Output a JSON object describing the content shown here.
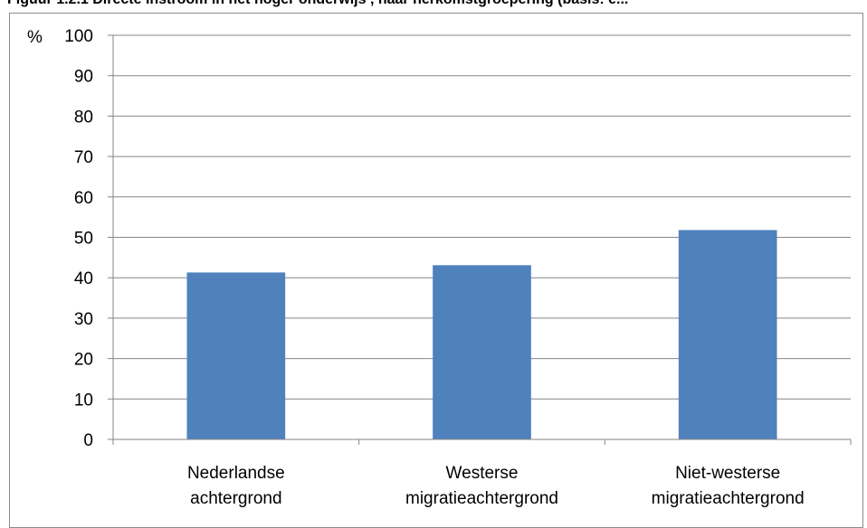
{
  "figure": {
    "title": "Figuur 1.2.1 Directe instroom in het hoger onderwijs , naar herkomstgroepering (basis: e..."
  },
  "colors": {
    "bar": "#4f81bd",
    "gridline": "#868686",
    "axis": "#868686"
  },
  "chart_data": {
    "type": "bar",
    "ylabel": "%",
    "ylim": [
      0,
      100
    ],
    "yticks": [
      0,
      10,
      20,
      30,
      40,
      50,
      60,
      70,
      80,
      90,
      100
    ],
    "grid": true,
    "categories": [
      [
        "Nederlandse",
        "achtergrond"
      ],
      [
        "Westerse",
        "migratieachtergrond"
      ],
      [
        "Niet-westerse",
        "migratieachtergrond"
      ]
    ],
    "values": [
      41.3,
      43.1,
      51.8
    ]
  }
}
